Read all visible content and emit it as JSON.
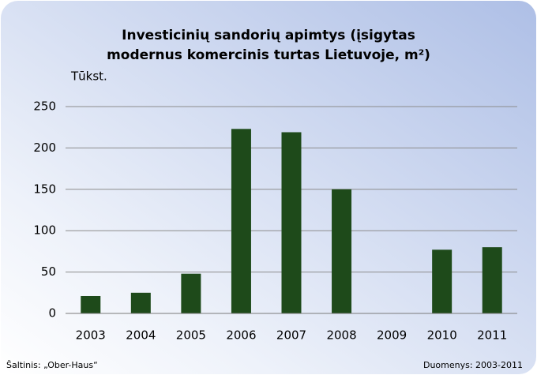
{
  "chart_data": {
    "type": "bar",
    "title": [
      "Investicinių sandorių apimtys (įsigytas",
      "modernus komercinis turtas Lietuvoje, m²)"
    ],
    "y_label": "Tūkst.",
    "categories": [
      "2003",
      "2004",
      "2005",
      "2006",
      "2007",
      "2008",
      "2009",
      "2010",
      "2011"
    ],
    "values": [
      21,
      25,
      48,
      223,
      219,
      150,
      0,
      77,
      80
    ],
    "color": "#1e4a1a",
    "ylim": [
      0,
      250
    ],
    "yticks": [
      0,
      50,
      100,
      150,
      200,
      250
    ],
    "grid": true,
    "source": "Šaltinis: „Ober-Haus“",
    "note": "Duomenys: 2003-2011"
  }
}
